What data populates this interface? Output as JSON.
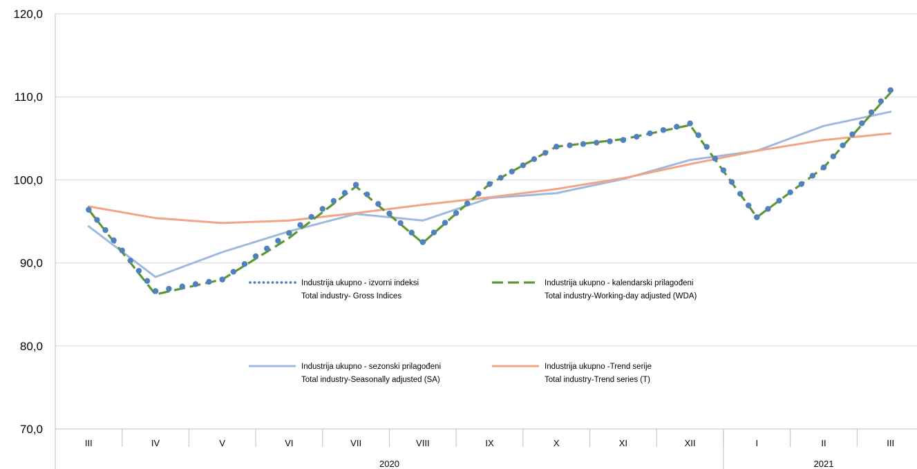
{
  "chart_data": {
    "type": "line",
    "ylim": [
      70,
      120
    ],
    "y_ticks": [
      "70,0",
      "80,0",
      "90,0",
      "100,0",
      "110,0",
      "120,0"
    ],
    "y_tick_values": [
      70,
      80,
      90,
      100,
      110,
      120
    ],
    "grid": "horizontal",
    "categories": [
      "III",
      "IV",
      "V",
      "VI",
      "VII",
      "VIII",
      "IX",
      "X",
      "XI",
      "XII",
      "I",
      "II",
      "III"
    ],
    "years": [
      {
        "label": "2020",
        "from": 0,
        "to": 9
      },
      {
        "label": "2021",
        "from": 10,
        "to": 12
      }
    ],
    "legend": [
      {
        "series": "gross",
        "line1": "Industrija ukupno - izvorni indeksi",
        "line2": "Total industry- Gross Indices"
      },
      {
        "series": "wda",
        "line1": "Industrija ukupno - kalendarski prilagođeni",
        "line2": "Total industry-Working-day adjusted (WDA)"
      },
      {
        "series": "sa",
        "line1": "Industrija ukupno - sezonski prilagođeni",
        "line2": "Total industry-Seasonally adjusted (SA)"
      },
      {
        "series": "trend",
        "line1": "Industrija ukupno -Trend serije",
        "line2": "Total industry-Trend series (T)"
      }
    ],
    "series": [
      {
        "id": "gross",
        "style": "dotted",
        "color": "#4F81BD",
        "values": [
          96.4,
          86.6,
          88.0,
          93.6,
          99.4,
          92.5,
          99.5,
          104.0,
          104.8,
          106.8,
          95.5,
          101.5,
          110.8
        ]
      },
      {
        "id": "wda",
        "style": "dashed",
        "color": "#5E9732",
        "values": [
          96.4,
          86.2,
          88.0,
          93.0,
          99.2,
          92.4,
          99.5,
          104.0,
          104.9,
          106.6,
          95.5,
          101.5,
          110.5
        ]
      },
      {
        "id": "sa",
        "style": "solid",
        "color": "#9DB9DE",
        "values": [
          94.4,
          88.3,
          91.3,
          93.8,
          95.9,
          95.1,
          97.8,
          98.4,
          100.1,
          102.4,
          103.5,
          106.5,
          108.2
        ]
      },
      {
        "id": "trend",
        "style": "solid",
        "color": "#F0A585",
        "values": [
          96.8,
          95.4,
          94.8,
          95.1,
          96.0,
          97.0,
          97.9,
          98.9,
          100.2,
          101.9,
          103.5,
          104.8,
          105.6
        ]
      }
    ]
  }
}
